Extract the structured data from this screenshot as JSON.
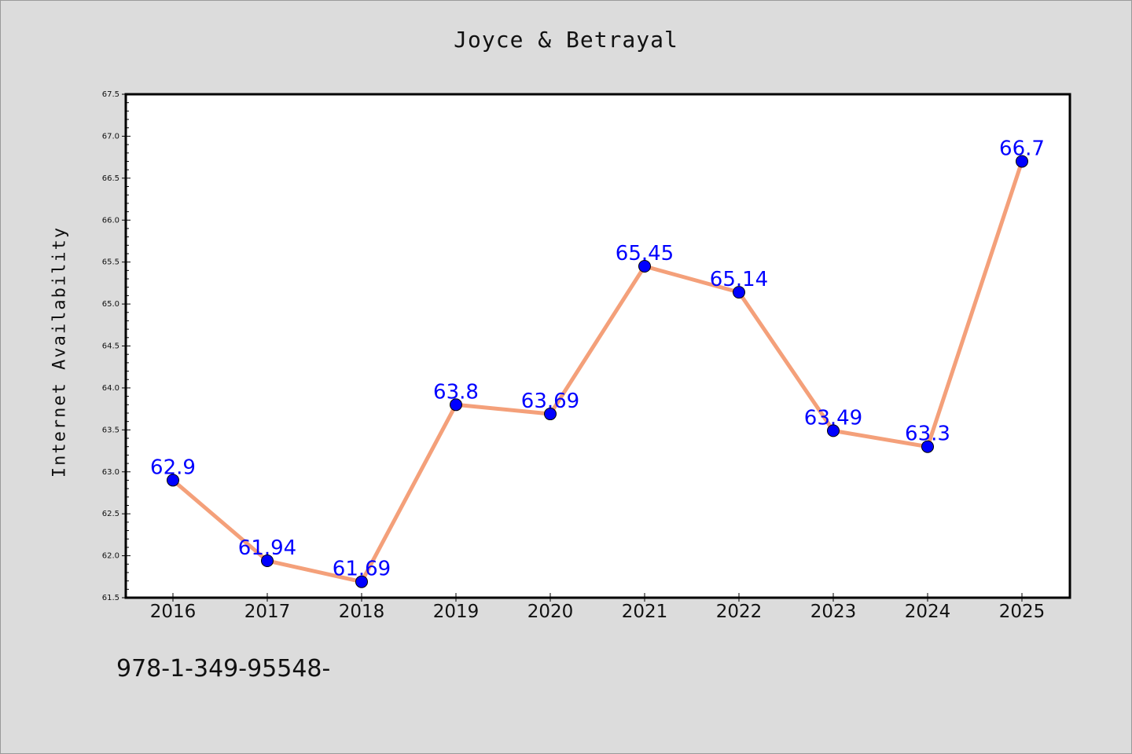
{
  "chart_data": {
    "type": "line",
    "title": "Joyce & Betrayal",
    "xlabel": "",
    "ylabel": "Internet Availability",
    "categories": [
      "2016",
      "2017",
      "2018",
      "2019",
      "2020",
      "2021",
      "2022",
      "2023",
      "2024",
      "2025"
    ],
    "values": [
      62.9,
      61.94,
      61.69,
      63.8,
      63.69,
      65.45,
      65.14,
      63.49,
      63.3,
      66.7
    ],
    "data_labels": [
      "62.9",
      "61.94",
      "61.69",
      "63.8",
      "63.69",
      "65.45",
      "65.14",
      "63.49",
      "63.3",
      "66.7"
    ],
    "yticks": [
      "61.5",
      "62.0",
      "62.5",
      "63.0",
      "63.5",
      "64.0",
      "64.5",
      "65.0",
      "65.5",
      "66.0",
      "66.5",
      "67.0",
      "67.5"
    ],
    "ylim": [
      61.5,
      67.5
    ],
    "grid": false,
    "legend": "none"
  },
  "footer_text": "978-1-349-95548-",
  "colors": {
    "background": "#dcdcdc",
    "plot_background": "#ffffff",
    "line": "#f4a07a",
    "marker": "#0000ff",
    "data_label": "#0000ff"
  }
}
